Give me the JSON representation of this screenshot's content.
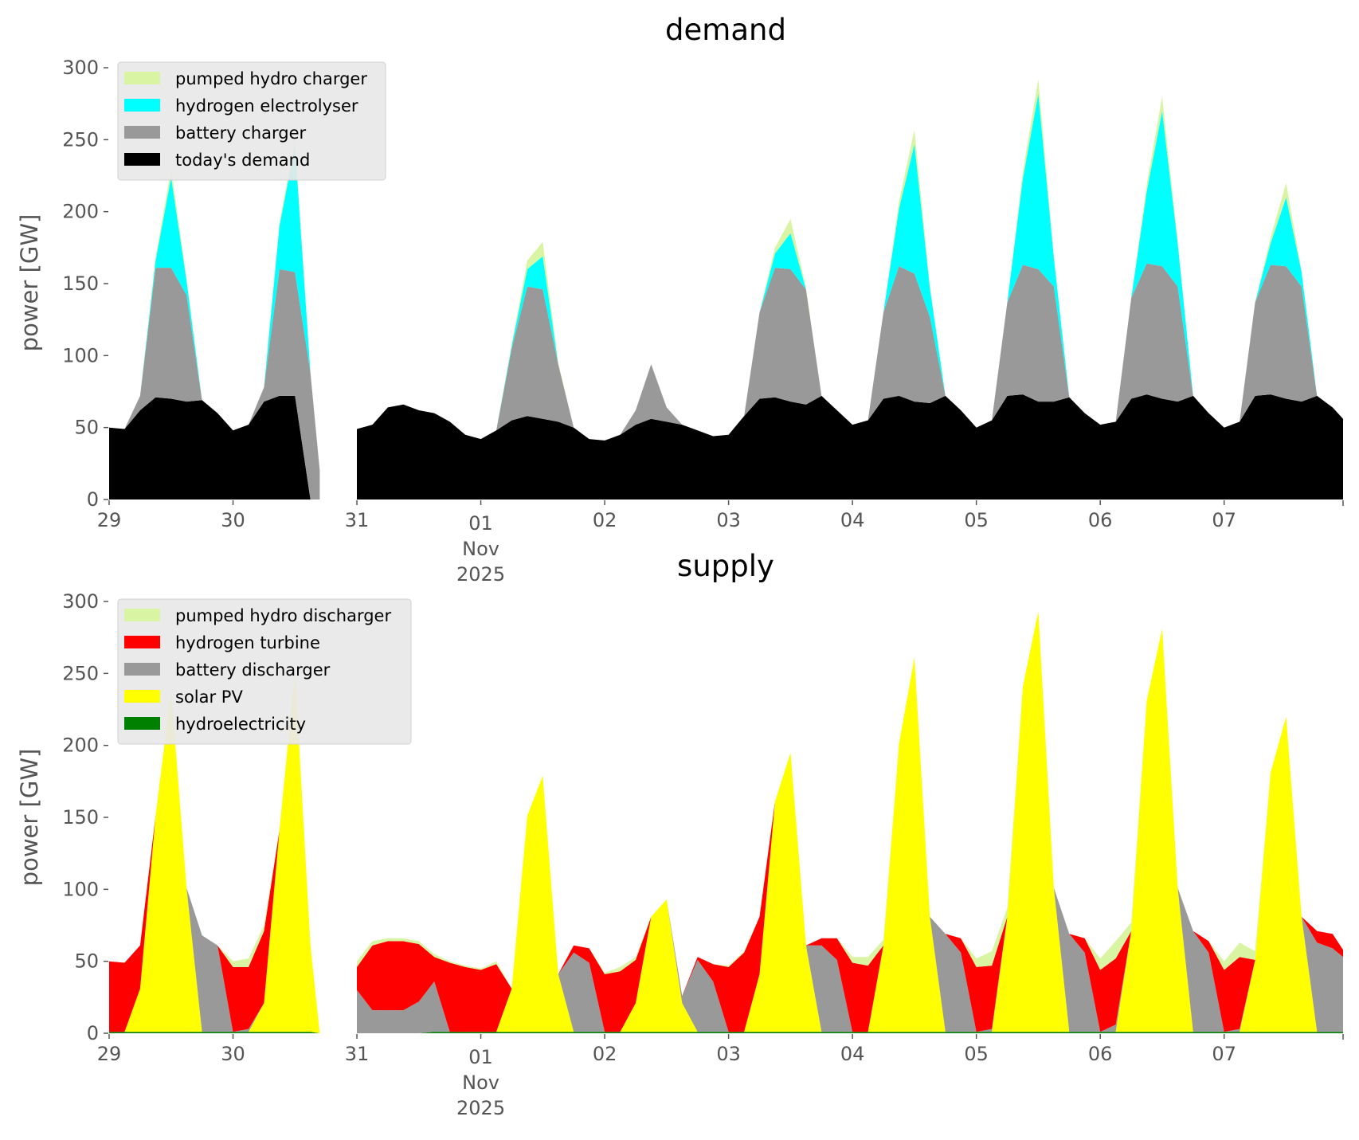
{
  "chart_data": [
    {
      "type": "area",
      "stacked": true,
      "title": "demand",
      "ylabel": "power [GW]",
      "xlabel": "",
      "ylim": [
        0,
        300
      ],
      "yticks": [
        0,
        50,
        100,
        150,
        200,
        250,
        300
      ],
      "xticks": [
        {
          "label": "29",
          "day": 0
        },
        {
          "label": "30",
          "day": 1
        },
        {
          "label": "31",
          "day": 2
        },
        {
          "label": "01",
          "day": 3,
          "sub": [
            "Nov",
            "2025"
          ]
        },
        {
          "label": "02",
          "day": 4
        },
        {
          "label": "03",
          "day": 5
        },
        {
          "label": "04",
          "day": 6
        },
        {
          "label": "05",
          "day": 7
        },
        {
          "label": "06",
          "day": 8
        },
        {
          "label": "07",
          "day": 9
        }
      ],
      "x_unit": "days since 2025-10-29 00:00",
      "xlim": [
        0,
        9.96
      ],
      "grid": false,
      "legend_position": "top-left",
      "x": [
        0,
        0.125,
        0.25,
        0.375,
        0.5,
        0.625,
        0.75,
        0.875,
        1,
        1.125,
        1.25,
        1.375,
        1.5,
        1.625,
        1.7,
        null,
        2,
        2.125,
        2.25,
        2.375,
        2.5,
        2.625,
        2.75,
        2.875,
        3,
        3.125,
        3.25,
        3.375,
        3.5,
        3.625,
        3.75,
        3.875,
        4,
        4.125,
        4.25,
        4.375,
        4.5,
        4.625,
        4.75,
        4.875,
        5,
        5.125,
        5.25,
        5.375,
        5.5,
        5.625,
        5.75,
        5.875,
        6,
        6.125,
        6.25,
        6.375,
        6.5,
        6.625,
        6.75,
        6.875,
        7,
        7.125,
        7.25,
        7.375,
        7.5,
        7.625,
        7.75,
        7.875,
        8,
        8.125,
        8.25,
        8.375,
        8.5,
        8.625,
        8.75,
        8.875,
        9,
        9.125,
        9.25,
        9.375,
        9.5,
        9.625,
        9.75,
        9.875,
        9.96
      ],
      "series": [
        {
          "name": "today's demand",
          "color": "#000000",
          "values": [
            50,
            49,
            62,
            71,
            70,
            68,
            69,
            60,
            48,
            52,
            68,
            72,
            72,
            0,
            0,
            null,
            49,
            52,
            64,
            66,
            62,
            60,
            54,
            45,
            42,
            48,
            55,
            58,
            56,
            54,
            50,
            42,
            41,
            45,
            52,
            56,
            54,
            52,
            48,
            44,
            45,
            58,
            70,
            71,
            68,
            66,
            72,
            62,
            52,
            55,
            70,
            72,
            68,
            67,
            72,
            62,
            50,
            55,
            72,
            73,
            68,
            68,
            71,
            60,
            52,
            54,
            70,
            73,
            70,
            68,
            72,
            60,
            50,
            54,
            72,
            73,
            70,
            68,
            72,
            64,
            56
          ]
        },
        {
          "name": "battery charger",
          "color": "#999999",
          "values": [
            0,
            0,
            10,
            90,
            91,
            74,
            0,
            0,
            0,
            0,
            10,
            88,
            86,
            88,
            20,
            null,
            0,
            0,
            0,
            0,
            0,
            0,
            0,
            0,
            0,
            0,
            50,
            90,
            90,
            40,
            0,
            0,
            0,
            0,
            10,
            38,
            10,
            0,
            0,
            0,
            0,
            0,
            60,
            90,
            92,
            80,
            0,
            0,
            0,
            0,
            60,
            90,
            89,
            60,
            0,
            0,
            0,
            0,
            65,
            90,
            92,
            80,
            0,
            0,
            0,
            0,
            70,
            91,
            92,
            80,
            0,
            0,
            0,
            0,
            65,
            90,
            92,
            80,
            0,
            0,
            0
          ]
        },
        {
          "name": "hydrogen electrolyser",
          "color": "#00ffff",
          "values": [
            0,
            0,
            0,
            5,
            63,
            10,
            0,
            0,
            0,
            0,
            0,
            30,
            88,
            0,
            0,
            null,
            0,
            0,
            0,
            0,
            0,
            0,
            0,
            0,
            0,
            0,
            2,
            12,
            23,
            0,
            0,
            0,
            0,
            0,
            0,
            0,
            0,
            0,
            0,
            0,
            0,
            0,
            0,
            10,
            25,
            0,
            0,
            0,
            0,
            0,
            0,
            40,
            90,
            20,
            0,
            0,
            0,
            0,
            0,
            60,
            122,
            20,
            0,
            0,
            0,
            0,
            0,
            50,
            108,
            30,
            0,
            0,
            0,
            0,
            0,
            15,
            48,
            10,
            0,
            0,
            0
          ]
        },
        {
          "name": "pumped hydro charger",
          "color": "#d9f5a3",
          "values": [
            0,
            0,
            0,
            2,
            6,
            2,
            0,
            0,
            0,
            0,
            0,
            2,
            4,
            0,
            0,
            null,
            0,
            0,
            0,
            0,
            0,
            0,
            0,
            0,
            0,
            0,
            1,
            6,
            10,
            1,
            0,
            0,
            0,
            0,
            0,
            0,
            0,
            0,
            0,
            0,
            0,
            0,
            0,
            4,
            10,
            1,
            0,
            0,
            0,
            0,
            0,
            5,
            10,
            2,
            0,
            0,
            0,
            0,
            0,
            5,
            10,
            2,
            0,
            0,
            0,
            0,
            0,
            5,
            10,
            2,
            0,
            0,
            0,
            0,
            0,
            4,
            10,
            1,
            0,
            0,
            0
          ]
        }
      ]
    },
    {
      "type": "area",
      "stacked": true,
      "title": "supply",
      "ylabel": "power [GW]",
      "xlabel": "",
      "ylim": [
        0,
        300
      ],
      "yticks": [
        0,
        50,
        100,
        150,
        200,
        250,
        300
      ],
      "xticks": [
        {
          "label": "29",
          "day": 0
        },
        {
          "label": "30",
          "day": 1
        },
        {
          "label": "31",
          "day": 2
        },
        {
          "label": "01",
          "day": 3,
          "sub": [
            "Nov",
            "2025"
          ]
        },
        {
          "label": "02",
          "day": 4
        },
        {
          "label": "03",
          "day": 5
        },
        {
          "label": "04",
          "day": 6
        },
        {
          "label": "05",
          "day": 7
        },
        {
          "label": "06",
          "day": 8
        },
        {
          "label": "07",
          "day": 9
        }
      ],
      "x_unit": "days since 2025-10-29 00:00",
      "xlim": [
        0,
        9.96
      ],
      "grid": false,
      "legend_position": "top-left",
      "x": [
        0,
        0.125,
        0.25,
        0.375,
        0.5,
        0.625,
        0.75,
        0.875,
        1,
        1.125,
        1.25,
        1.375,
        1.5,
        1.625,
        1.7,
        null,
        2,
        2.125,
        2.25,
        2.375,
        2.5,
        2.625,
        2.75,
        2.875,
        3,
        3.125,
        3.25,
        3.375,
        3.5,
        3.625,
        3.75,
        3.875,
        4,
        4.125,
        4.25,
        4.375,
        4.5,
        4.625,
        4.75,
        4.875,
        5,
        5.125,
        5.25,
        5.375,
        5.5,
        5.625,
        5.75,
        5.875,
        6,
        6.125,
        6.25,
        6.375,
        6.5,
        6.625,
        6.75,
        6.875,
        7,
        7.125,
        7.25,
        7.375,
        7.5,
        7.625,
        7.75,
        7.875,
        8,
        8.125,
        8.25,
        8.375,
        8.5,
        8.625,
        8.75,
        8.875,
        9,
        9.125,
        9.25,
        9.375,
        9.5,
        9.625,
        9.75,
        9.875,
        9.96
      ],
      "series": [
        {
          "name": "hydroelectricity",
          "color": "#008000",
          "values": [
            1,
            1,
            1,
            1,
            1,
            1,
            1,
            1,
            1,
            1,
            1,
            1,
            1,
            1,
            0,
            null,
            0,
            0,
            0,
            0,
            0,
            1,
            1,
            1,
            1,
            1,
            1,
            1,
            1,
            1,
            1,
            1,
            1,
            1,
            1,
            1,
            1,
            1,
            1,
            1,
            1,
            1,
            1,
            1,
            1,
            1,
            1,
            1,
            1,
            1,
            1,
            1,
            1,
            1,
            1,
            1,
            1,
            1,
            1,
            1,
            1,
            1,
            1,
            1,
            1,
            1,
            1,
            1,
            1,
            1,
            1,
            1,
            1,
            1,
            1,
            1,
            1,
            1,
            1,
            1,
            1
          ]
        },
        {
          "name": "solar PV",
          "color": "#ffff00",
          "values": [
            0,
            0,
            30,
            150,
            237,
            100,
            0,
            0,
            0,
            0,
            20,
            140,
            250,
            60,
            0,
            null,
            0,
            0,
            0,
            0,
            0,
            0,
            0,
            0,
            0,
            0,
            30,
            150,
            178,
            40,
            0,
            0,
            0,
            0,
            20,
            80,
            92,
            20,
            0,
            0,
            0,
            0,
            40,
            160,
            194,
            60,
            0,
            0,
            0,
            0,
            60,
            200,
            260,
            80,
            0,
            0,
            0,
            0,
            80,
            240,
            292,
            100,
            0,
            0,
            0,
            0,
            70,
            230,
            280,
            100,
            0,
            0,
            0,
            0,
            50,
            180,
            219,
            80,
            0,
            0,
            0
          ]
        },
        {
          "name": "battery discharger",
          "color": "#999999",
          "values": [
            0,
            0,
            0,
            0,
            0,
            0,
            67,
            60,
            0,
            2,
            0,
            0,
            0,
            0,
            0,
            null,
            30,
            16,
            16,
            16,
            22,
            35,
            0,
            0,
            0,
            0,
            0,
            0,
            0,
            0,
            55,
            48,
            0,
            0,
            0,
            0,
            0,
            5,
            50,
            35,
            0,
            0,
            0,
            0,
            0,
            0,
            60,
            50,
            0,
            0,
            0,
            0,
            0,
            0,
            68,
            55,
            0,
            2,
            0,
            0,
            0,
            0,
            68,
            55,
            0,
            5,
            0,
            0,
            0,
            0,
            70,
            55,
            0,
            2,
            0,
            0,
            0,
            0,
            62,
            58,
            52
          ]
        },
        {
          "name": "hydrogen turbine",
          "color": "#ff0000",
          "values": [
            49,
            48,
            30,
            0,
            0,
            0,
            0,
            0,
            45,
            43,
            50,
            0,
            0,
            0,
            0,
            null,
            16,
            45,
            48,
            48,
            40,
            17,
            48,
            45,
            43,
            47,
            0,
            0,
            0,
            0,
            5,
            10,
            40,
            42,
            30,
            0,
            0,
            0,
            2,
            12,
            45,
            55,
            40,
            0,
            0,
            0,
            5,
            15,
            48,
            46,
            0,
            0,
            0,
            0,
            0,
            10,
            45,
            44,
            0,
            0,
            0,
            0,
            0,
            10,
            43,
            46,
            0,
            0,
            0,
            0,
            0,
            8,
            43,
            50,
            0,
            0,
            0,
            0,
            8,
            10,
            5
          ]
        },
        {
          "name": "pumped hydro discharger",
          "color": "#d9f5a3",
          "values": [
            0,
            0,
            0,
            0,
            0,
            0,
            0,
            0,
            4,
            6,
            4,
            0,
            0,
            0,
            0,
            null,
            4,
            3,
            2,
            2,
            2,
            2,
            1,
            1,
            1,
            2,
            0,
            0,
            0,
            0,
            0,
            0,
            1,
            3,
            2,
            0,
            0,
            0,
            0,
            0,
            1,
            1,
            0,
            0,
            0,
            0,
            0,
            0,
            4,
            6,
            4,
            0,
            0,
            0,
            0,
            0,
            6,
            10,
            6,
            0,
            0,
            0,
            0,
            0,
            8,
            12,
            6,
            0,
            0,
            0,
            0,
            0,
            6,
            10,
            6,
            0,
            0,
            0,
            0,
            0,
            0
          ]
        }
      ]
    }
  ]
}
